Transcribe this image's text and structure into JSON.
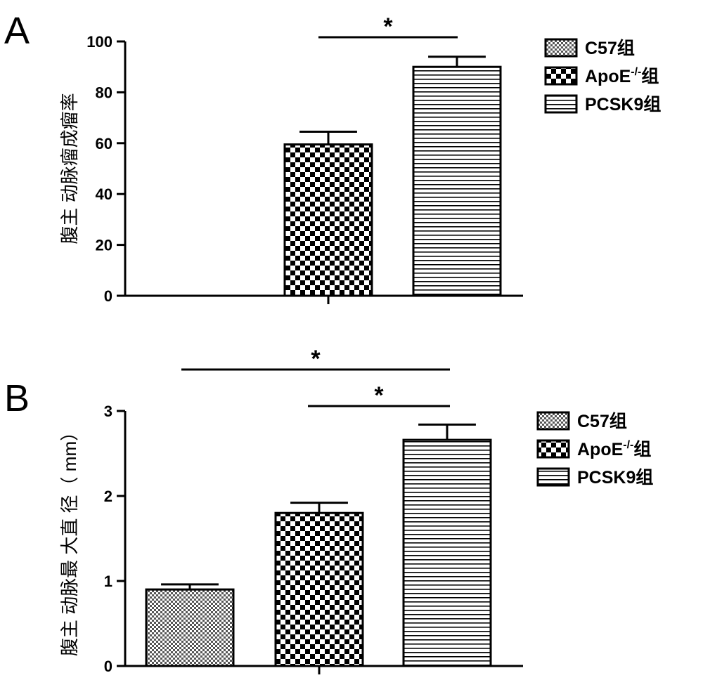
{
  "figure": {
    "panels": [
      {
        "letter": "A",
        "ylabel": "腹主 动脉瘤成瘤率",
        "legend": [
          "C57组",
          "ApoE-/-组",
          "PCSK9组"
        ],
        "significance": [
          "*"
        ]
      },
      {
        "letter": "B",
        "ylabel": "腹主 动脉最 大直 径（ mm）",
        "legend": [
          "C57组",
          "ApoE-/-组",
          "PCSK9组"
        ],
        "significance": [
          "*",
          "*"
        ]
      }
    ]
  },
  "chart_data": [
    {
      "type": "bar",
      "panel": "A",
      "title": "",
      "xlabel": "",
      "ylabel": "腹主 动脉瘤成瘤率",
      "categories": [
        "C57组",
        "ApoE-/-组",
        "PCSK9组"
      ],
      "values": [
        0,
        59.5,
        90
      ],
      "errors": [
        0,
        5,
        4
      ],
      "ylim": [
        0,
        100
      ],
      "yticks": [
        0,
        20,
        40,
        60,
        80,
        100
      ],
      "ytick_labels": [
        "0",
        "20",
        "40",
        "60",
        "80",
        "100"
      ],
      "patterns": [
        "fine-check",
        "checker",
        "horizontal-lines"
      ],
      "significance": [
        {
          "groups": [
            "ApoE-/-组",
            "PCSK9组"
          ],
          "label": "*"
        }
      ],
      "legend_position": "right",
      "grid": false
    },
    {
      "type": "bar",
      "panel": "B",
      "title": "",
      "xlabel": "",
      "ylabel": "腹主 动脉最 大直 径（ mm）",
      "categories": [
        "C57组",
        "ApoE-/-组",
        "PCSK9组"
      ],
      "values": [
        0.9,
        1.8,
        2.66
      ],
      "errors": [
        0.06,
        0.12,
        0.18
      ],
      "ylim": [
        0,
        3
      ],
      "yticks": [
        0,
        1,
        2,
        3
      ],
      "ytick_labels": [
        "0",
        "1",
        "2",
        "3"
      ],
      "patterns": [
        "fine-check",
        "checker",
        "horizontal-lines"
      ],
      "significance": [
        {
          "groups": [
            "C57组",
            "PCSK9组"
          ],
          "label": "*"
        },
        {
          "groups": [
            "ApoE-/-组",
            "PCSK9组"
          ],
          "label": "*"
        }
      ],
      "legend_position": "right",
      "grid": false
    }
  ]
}
